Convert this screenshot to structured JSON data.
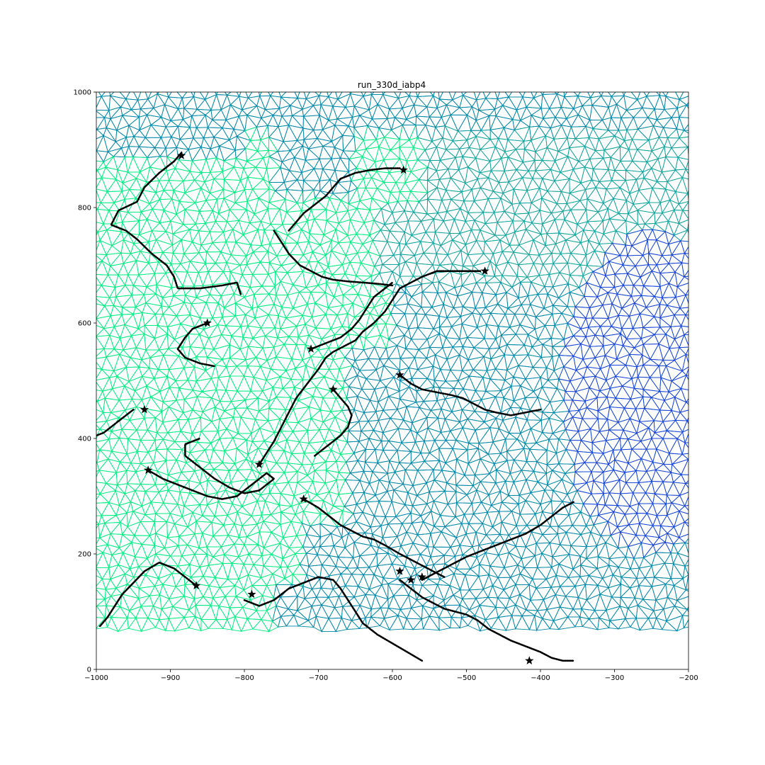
{
  "chart_data": {
    "type": "scatter",
    "title": "run_330d_iabp4",
    "xlabel": "",
    "ylabel": "",
    "xlim": [
      -1000,
      -200
    ],
    "ylim": [
      0,
      1000
    ],
    "x_ticks": [
      -1000,
      -900,
      -800,
      -700,
      -600,
      -500,
      -400,
      -300,
      -200
    ],
    "y_ticks": [
      0,
      200,
      400,
      600,
      800,
      1000
    ],
    "x_tick_labels": [
      "−1000",
      "−900",
      "−800",
      "−700",
      "−600",
      "−500",
      "−400",
      "−300",
      "−200"
    ],
    "y_tick_labels": [
      "0",
      "200",
      "400",
      "600",
      "800",
      "1000"
    ],
    "grid": false,
    "background_mesh": {
      "kind": "triangulated mesh colored by region",
      "colors": {
        "green": "#00ee80",
        "teal": "#0088a8",
        "blue": "#1545d8",
        "seafoam": "#10a49c"
      }
    },
    "series": [
      {
        "marker": "dotted trajectories",
        "color": "#000000",
        "tracks": [
          [
            [
              -885,
              895
            ],
            [
              -895,
              880
            ],
            [
              -915,
              860
            ],
            [
              -935,
              835
            ],
            [
              -945,
              810
            ],
            [
              -970,
              795
            ],
            [
              -980,
              770
            ],
            [
              -960,
              760
            ],
            [
              -945,
              745
            ],
            [
              -925,
              720
            ],
            [
              -905,
              700
            ],
            [
              -895,
              680
            ],
            [
              -890,
              660
            ],
            [
              -860,
              660
            ],
            [
              -830,
              665
            ],
            [
              -810,
              670
            ],
            [
              -805,
              650
            ]
          ],
          [
            [
              -950,
              450
            ],
            [
              -960,
              440
            ],
            [
              -970,
              430
            ],
            [
              -980,
              420
            ],
            [
              -990,
              410
            ],
            [
              -1000,
              405
            ]
          ],
          [
            [
              -850,
              600
            ],
            [
              -870,
              590
            ],
            [
              -880,
              575
            ],
            [
              -890,
              555
            ],
            [
              -880,
              540
            ],
            [
              -860,
              530
            ],
            [
              -840,
              525
            ]
          ],
          [
            [
              -930,
              345
            ],
            [
              -910,
              330
            ],
            [
              -890,
              320
            ],
            [
              -870,
              310
            ],
            [
              -850,
              300
            ],
            [
              -830,
              295
            ],
            [
              -810,
              300
            ],
            [
              -790,
              320
            ],
            [
              -770,
              340
            ],
            [
              -760,
              330
            ],
            [
              -780,
              310
            ],
            [
              -800,
              305
            ],
            [
              -820,
              315
            ],
            [
              -840,
              330
            ],
            [
              -860,
              350
            ],
            [
              -880,
              370
            ],
            [
              -880,
              390
            ],
            [
              -860,
              400
            ]
          ],
          [
            [
              -865,
              145
            ],
            [
              -880,
              160
            ],
            [
              -895,
              175
            ],
            [
              -915,
              185
            ],
            [
              -935,
              170
            ],
            [
              -950,
              150
            ],
            [
              -965,
              130
            ],
            [
              -975,
              110
            ],
            [
              -985,
              90
            ],
            [
              -995,
              75
            ]
          ],
          [
            [
              -800,
              120
            ],
            [
              -780,
              110
            ],
            [
              -760,
              120
            ],
            [
              -740,
              140
            ],
            [
              -720,
              150
            ],
            [
              -700,
              160
            ],
            [
              -680,
              155
            ],
            [
              -670,
              140
            ],
            [
              -660,
              120
            ],
            [
              -650,
              100
            ],
            [
              -640,
              80
            ],
            [
              -620,
              60
            ],
            [
              -600,
              45
            ],
            [
              -580,
              30
            ],
            [
              -560,
              15
            ]
          ],
          [
            [
              -780,
              355
            ],
            [
              -770,
              375
            ],
            [
              -760,
              395
            ],
            [
              -750,
              420
            ],
            [
              -740,
              445
            ],
            [
              -730,
              470
            ],
            [
              -715,
              495
            ],
            [
              -700,
              520
            ],
            [
              -690,
              540
            ],
            [
              -680,
              550
            ],
            [
              -665,
              560
            ],
            [
              -650,
              570
            ],
            [
              -640,
              585
            ],
            [
              -625,
              600
            ],
            [
              -610,
              620
            ],
            [
              -600,
              640
            ],
            [
              -590,
              660
            ],
            [
              -575,
              670
            ],
            [
              -560,
              680
            ],
            [
              -540,
              690
            ],
            [
              -520,
              690
            ],
            [
              -500,
              690
            ],
            [
              -480,
              690
            ]
          ],
          [
            [
              -710,
              555
            ],
            [
              -690,
              565
            ],
            [
              -670,
              575
            ],
            [
              -655,
              590
            ],
            [
              -645,
              605
            ],
            [
              -635,
              625
            ],
            [
              -625,
              645
            ],
            [
              -610,
              660
            ],
            [
              -600,
              670
            ]
          ],
          [
            [
              -680,
              485
            ],
            [
              -670,
              470
            ],
            [
              -660,
              455
            ],
            [
              -655,
              440
            ],
            [
              -660,
              420
            ],
            [
              -670,
              405
            ],
            [
              -680,
              395
            ],
            [
              -695,
              380
            ],
            [
              -705,
              370
            ]
          ],
          [
            [
              -720,
              295
            ],
            [
              -700,
              280
            ],
            [
              -685,
              265
            ],
            [
              -670,
              250
            ],
            [
              -655,
              240
            ],
            [
              -640,
              230
            ],
            [
              -625,
              225
            ],
            [
              -610,
              215
            ],
            [
              -590,
              200
            ],
            [
              -575,
              190
            ],
            [
              -560,
              180
            ],
            [
              -545,
              170
            ],
            [
              -530,
              160
            ]
          ],
          [
            [
              -740,
              760
            ],
            [
              -730,
              775
            ],
            [
              -720,
              790
            ],
            [
              -705,
              805
            ],
            [
              -690,
              820
            ],
            [
              -680,
              835
            ],
            [
              -670,
              850
            ],
            [
              -650,
              860
            ],
            [
              -630,
              865
            ],
            [
              -610,
              868
            ],
            [
              -590,
              868
            ]
          ],
          [
            [
              -760,
              760
            ],
            [
              -750,
              740
            ],
            [
              -740,
              720
            ],
            [
              -725,
              700
            ],
            [
              -710,
              690
            ],
            [
              -695,
              680
            ],
            [
              -680,
              675
            ],
            [
              -660,
              672
            ],
            [
              -640,
              670
            ],
            [
              -620,
              668
            ],
            [
              -600,
              665
            ]
          ],
          [
            [
              -590,
              510
            ],
            [
              -575,
              495
            ],
            [
              -560,
              485
            ],
            [
              -540,
              480
            ],
            [
              -520,
              475
            ],
            [
              -505,
              470
            ],
            [
              -490,
              460
            ],
            [
              -475,
              450
            ],
            [
              -460,
              445
            ],
            [
              -440,
              440
            ],
            [
              -420,
              445
            ],
            [
              -400,
              450
            ]
          ],
          [
            [
              -590,
              155
            ],
            [
              -575,
              140
            ],
            [
              -560,
              125
            ],
            [
              -545,
              115
            ],
            [
              -530,
              105
            ],
            [
              -515,
              100
            ],
            [
              -500,
              95
            ],
            [
              -485,
              85
            ],
            [
              -470,
              70
            ],
            [
              -455,
              60
            ],
            [
              -440,
              50
            ],
            [
              -420,
              40
            ],
            [
              -400,
              30
            ],
            [
              -385,
              20
            ],
            [
              -370,
              15
            ],
            [
              -355,
              15
            ]
          ],
          [
            [
              -560,
              155
            ],
            [
              -545,
              165
            ],
            [
              -530,
              175
            ],
            [
              -515,
              185
            ],
            [
              -500,
              195
            ],
            [
              -480,
              205
            ],
            [
              -460,
              215
            ],
            [
              -440,
              225
            ],
            [
              -420,
              235
            ],
            [
              -400,
              250
            ],
            [
              -385,
              265
            ],
            [
              -370,
              280
            ],
            [
              -355,
              290
            ]
          ]
        ],
        "star_markers": [
          [
            -885,
            890
          ],
          [
            -585,
            865
          ],
          [
            -475,
            690
          ],
          [
            -850,
            600
          ],
          [
            -710,
            555
          ],
          [
            -680,
            485
          ],
          [
            -590,
            510
          ],
          [
            -935,
            450
          ],
          [
            -930,
            345
          ],
          [
            -780,
            355
          ],
          [
            -720,
            295
          ],
          [
            -865,
            145
          ],
          [
            -590,
            170
          ],
          [
            -575,
            155
          ],
          [
            -560,
            160
          ],
          [
            -790,
            130
          ],
          [
            -415,
            15
          ]
        ]
      }
    ]
  }
}
